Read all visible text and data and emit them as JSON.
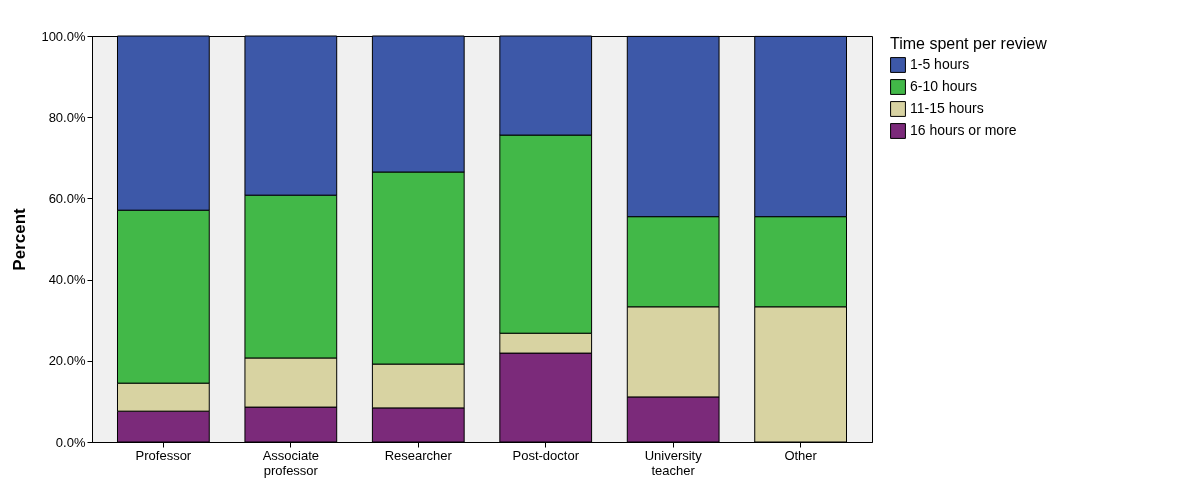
{
  "chart_data": {
    "type": "bar",
    "stacked": true,
    "ylabel": "Percent",
    "legend_title": "Time spent per review",
    "legend": "top right",
    "grid": false,
    "categories": [
      "Professor",
      "Associate professor",
      "Researcher",
      "Post-doctor",
      "University teacher",
      "Other"
    ],
    "ylim": [
      0,
      100
    ],
    "yticks": [
      {
        "value": 0,
        "label": "0.0%"
      },
      {
        "value": 20,
        "label": "20.0%"
      },
      {
        "value": 40,
        "label": "40.0%"
      },
      {
        "value": 60,
        "label": "60.0%"
      },
      {
        "value": 80,
        "label": "80.0%"
      },
      {
        "value": 100,
        "label": "100.0%"
      }
    ],
    "series": [
      {
        "name": "16 hours or more",
        "color": "#7b2a7a",
        "values": [
          7.6,
          8.6,
          8.4,
          21.9,
          11.1,
          0
        ]
      },
      {
        "name": "11-15 hours",
        "color": "#d8d3a2",
        "values": [
          6.9,
          12.1,
          10.8,
          4.9,
          22.2,
          33.3
        ]
      },
      {
        "name": "6-10 hours",
        "color": "#42b848",
        "values": [
          42.6,
          40.1,
          47.3,
          48.8,
          22.2,
          22.2
        ]
      },
      {
        "name": "1-5 hours",
        "color": "#3d58a8",
        "values": [
          42.9,
          39.2,
          33.5,
          24.4,
          44.4,
          44.4
        ]
      }
    ]
  }
}
